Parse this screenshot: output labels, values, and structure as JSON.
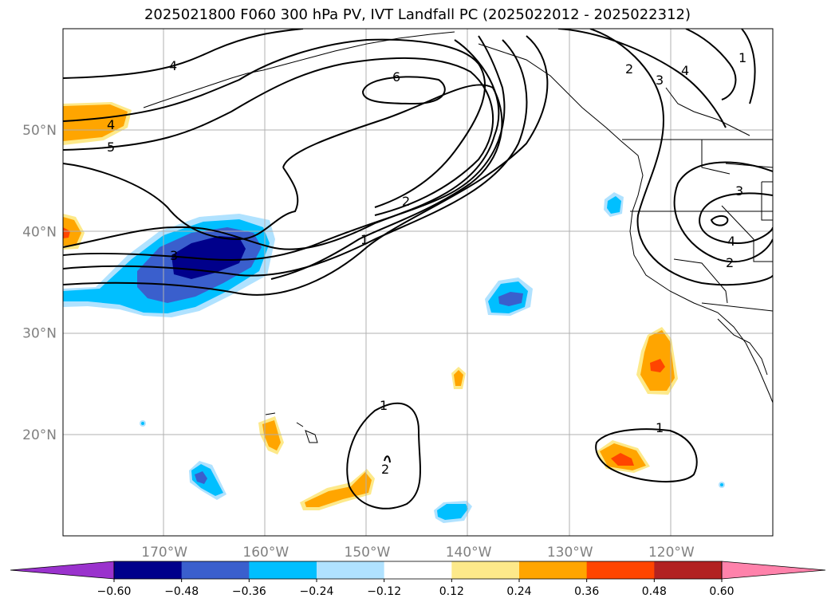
{
  "title": "2025021800 F060 300 hPa PV, IVT Landfall PC (2025022012 - 2025022312)",
  "chart_data": {
    "type": "heatmap",
    "title": "2025021800 F060 300 hPa PV, IVT Landfall PC (2025022012 - 2025022312)",
    "map_extent": {
      "lon": [
        -180,
        -110
      ],
      "lat": [
        10,
        60
      ]
    },
    "lat_ticks": [
      "20°N",
      "30°N",
      "40°N",
      "50°N"
    ],
    "lat_values": [
      20,
      30,
      40,
      50
    ],
    "lon_ticks": [
      "170°W",
      "160°W",
      "150°W",
      "140°W",
      "130°W",
      "120°W"
    ],
    "lon_values": [
      -170,
      -160,
      -150,
      -140,
      -130,
      -120
    ],
    "grid": true,
    "colorbar": {
      "orientation": "horizontal",
      "extend": "both",
      "levels": [
        "−0.60",
        "−0.48",
        "−0.36",
        "−0.24",
        "−0.12",
        "0.12",
        "0.24",
        "0.36",
        "0.48",
        "0.60"
      ],
      "colors": [
        "#9a32cd",
        "#00008b",
        "#3a5fcd",
        "#00bfff",
        "#b0e2ff",
        "#ffffff",
        "#fde98a",
        "#ffa500",
        "#ff4500",
        "#b22222",
        "#ff82ab"
      ]
    },
    "contour_labels": [
      "1",
      "2",
      "3",
      "4",
      "5",
      "6"
    ],
    "shaded_anomalies": [
      {
        "lon": -166,
        "lat": 37,
        "class": "−0.60 to −0.48"
      },
      {
        "lon": -136,
        "lat": 33,
        "class": "−0.48 to −0.36"
      },
      {
        "lon": -125,
        "lat": 43,
        "class": "−0.36 to −0.24"
      },
      {
        "lon": -165,
        "lat": 16,
        "class": "−0.36 to −0.24"
      },
      {
        "lon": -142,
        "lat": 13,
        "class": "−0.24 to −0.12"
      },
      {
        "lon": -121,
        "lat": 27,
        "class": "0.36 to 0.48"
      },
      {
        "lon": -124,
        "lat": 18,
        "class": "0.36 to 0.48"
      },
      {
        "lon": -176,
        "lat": 51,
        "class": "0.24 to 0.36"
      },
      {
        "lon": -179,
        "lat": 40,
        "class": "0.36 to 0.48"
      },
      {
        "lon": -152,
        "lat": 14,
        "class": "0.24 to 0.36"
      },
      {
        "lon": -160,
        "lat": 21,
        "class": "0.24 to 0.36"
      },
      {
        "lon": -141,
        "lat": 26,
        "class": "0.24 to 0.36"
      }
    ]
  }
}
